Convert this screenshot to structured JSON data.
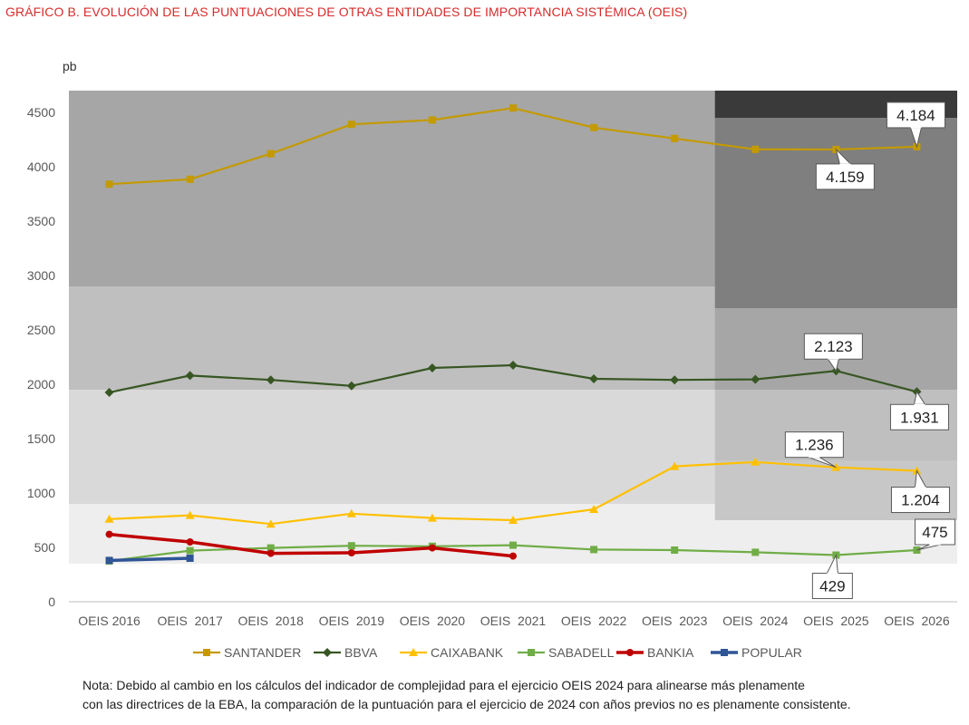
{
  "title": "GRÁFICO B. EVOLUCIÓN DE LAS PUNTUACIONES DE OTRAS ENTIDADES DE IMPORTANCIA SISTÉMICA (OEIS)",
  "note": {
    "line1": "Nota: Debido al cambio en los cálculos del indicador de complejidad para el ejercicio OEIS 2024 para alinearse más plenamente",
    "line2": "con las directrices de la EBA, la comparación de la puntuación para el ejercicio de 2024 con años previos no es plenamente consistente."
  },
  "colors": {
    "title": "#d62b2b",
    "band_1": "#eeeeee",
    "band_2": "#d9d9d9",
    "band_3": "#bfbfbf",
    "band_4": "#a6a6a6",
    "band_new_2": "#c7c7c7",
    "band_new_3": "#a6a6a6",
    "band_new_4": "#7f7f7f",
    "band_new_5": "#3a3a3a"
  },
  "chart_data": {
    "type": "line",
    "ylabel": "pb",
    "ylim": [
      0,
      4700
    ],
    "yticks": [
      "0",
      "500",
      "1000",
      "1500",
      "2000",
      "2500",
      "3000",
      "3500",
      "4000",
      "4500"
    ],
    "ytick_values": [
      0,
      500,
      1000,
      1500,
      2000,
      2500,
      3000,
      3500,
      4000,
      4500
    ],
    "categories": [
      "OEIS 2016",
      "OEIS  2017",
      "OEIS  2018",
      "OEIS  2019",
      "OEIS  2020",
      "OEIS  2021",
      "OEIS  2022",
      "OEIS  2023",
      "OEIS  2024",
      "OEIS  2025",
      "OEIS  2026"
    ],
    "legend_position": "bottom",
    "bands_2016_2023": [
      {
        "from": 350,
        "to": 900
      },
      {
        "from": 900,
        "to": 1950
      },
      {
        "from": 1950,
        "to": 2900
      },
      {
        "from": 2900,
        "to": 4700
      }
    ],
    "bands_2024_2026": [
      {
        "from": 350,
        "to": 750
      },
      {
        "from": 750,
        "to": 1300
      },
      {
        "from": 1300,
        "to": 1950
      },
      {
        "from": 1950,
        "to": 2700
      },
      {
        "from": 2700,
        "to": 4450
      },
      {
        "from": 4450,
        "to": 4700
      }
    ],
    "series": [
      {
        "name": "SANTANDER",
        "color": "#c49a00",
        "marker": "square",
        "values": [
          3840,
          3885,
          4120,
          4390,
          4430,
          4540,
          4360,
          4260,
          4160,
          4159,
          4184
        ]
      },
      {
        "name": "BBVA",
        "color": "#375623",
        "marker": "diamond",
        "values": [
          1925,
          2080,
          2040,
          1985,
          2150,
          2175,
          2050,
          2040,
          2045,
          2123,
          1931
        ]
      },
      {
        "name": "CAIXABANK",
        "color": "#ffc000",
        "marker": "triangle",
        "values": [
          760,
          795,
          715,
          810,
          770,
          750,
          850,
          1245,
          1285,
          1236,
          1204
        ]
      },
      {
        "name": "SABADELL",
        "color": "#70ad47",
        "marker": "square",
        "values": [
          375,
          470,
          495,
          515,
          510,
          520,
          480,
          475,
          455,
          429,
          475
        ]
      },
      {
        "name": "BANKIA",
        "color": "#c00000",
        "marker": "circle",
        "values": [
          620,
          550,
          445,
          450,
          495,
          420,
          null,
          null,
          null,
          null,
          null
        ]
      },
      {
        "name": "POPULAR",
        "color": "#2f5597",
        "marker": "square",
        "values": [
          380,
          400,
          null,
          null,
          null,
          null,
          null,
          null,
          null,
          null,
          null
        ]
      }
    ],
    "annotations": [
      {
        "text": "4.184",
        "series": "SANTANDER",
        "index": 10
      },
      {
        "text": "4.159",
        "series": "SANTANDER",
        "index": 9
      },
      {
        "text": "2.123",
        "series": "BBVA",
        "index": 9
      },
      {
        "text": "1.931",
        "series": "BBVA",
        "index": 10
      },
      {
        "text": "1.236",
        "series": "CAIXABANK",
        "index": 9
      },
      {
        "text": "1.204",
        "series": "CAIXABANK",
        "index": 10
      },
      {
        "text": "475",
        "series": "SABADELL",
        "index": 10
      },
      {
        "text": "429",
        "series": "SABADELL",
        "index": 9
      }
    ]
  }
}
